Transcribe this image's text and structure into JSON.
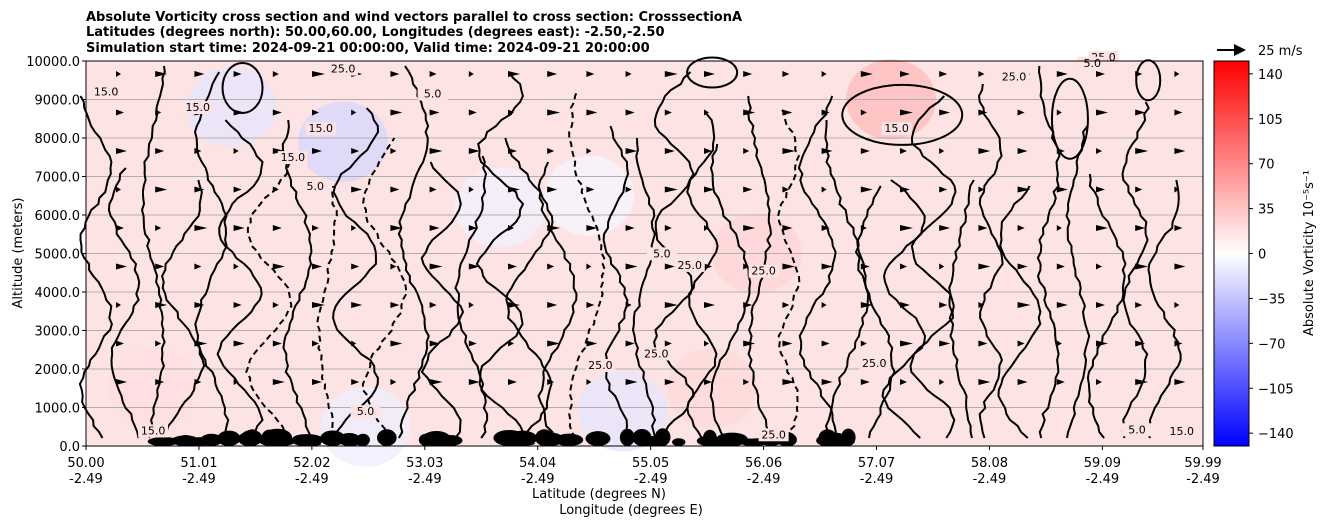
{
  "chart_data": {
    "type": "contour",
    "title_lines": [
      "Absolute Vorticity cross section and wind vectors parallel to cross section: CrosssectionA",
      "Latitudes (degrees north): 50.00,60.00, Longitudes (degrees east): -2.50,-2.50",
      "Simulation start time: 2024-09-21 00:00:00, Valid time: 2024-09-21 20:00:00"
    ],
    "ylabel": "Altitude (meters)",
    "xlabel_lines": [
      "Latitude (degrees N)",
      "Longitude (degrees E)"
    ],
    "x_ticks": [
      {
        "lat": "50.00",
        "lon": "-2.49",
        "value": 50.0
      },
      {
        "lat": "51.01",
        "lon": "-2.49",
        "value": 51.01
      },
      {
        "lat": "52.02",
        "lon": "-2.49",
        "value": 52.02
      },
      {
        "lat": "53.03",
        "lon": "-2.49",
        "value": 53.03
      },
      {
        "lat": "54.04",
        "lon": "-2.49",
        "value": 54.04
      },
      {
        "lat": "55.05",
        "lon": "-2.49",
        "value": 55.05
      },
      {
        "lat": "56.06",
        "lon": "-2.49",
        "value": 56.06
      },
      {
        "lat": "57.07",
        "lon": "-2.49",
        "value": 57.07
      },
      {
        "lat": "58.08",
        "lon": "-2.49",
        "value": 58.08
      },
      {
        "lat": "59.09",
        "lon": "-2.49",
        "value": 59.09
      },
      {
        "lat": "59.99",
        "lon": "-2.49",
        "value": 59.99
      }
    ],
    "xlim": [
      50.0,
      59.99
    ],
    "y_ticks": [
      "0.0",
      "1000.0",
      "2000.0",
      "3000.0",
      "4000.0",
      "5000.0",
      "6000.0",
      "7000.0",
      "8000.0",
      "9000.0",
      "10000.0"
    ],
    "ylim": [
      0,
      10000
    ],
    "grid": "horizontal",
    "colorbar": {
      "label": "Absolute Vorticity 10⁻⁵s⁻¹",
      "ticks": [
        "140",
        "105",
        "70",
        "35",
        "0",
        "−35",
        "−70",
        "−105",
        "−140"
      ],
      "range": [
        -150,
        150
      ],
      "cmap": "bwr",
      "color_low": "#0000ff",
      "color_mid": "#ffffff",
      "color_high": "#ff0000"
    },
    "quiver_key": "25 m/s",
    "contour_levels": [
      -5.0,
      5.0,
      15.0,
      25.0,
      35.0
    ],
    "contour_labels": [
      {
        "text": "15.0",
        "lat": 50.18,
        "alt": 9100
      },
      {
        "text": "15.0",
        "lat": 51.0,
        "alt": 8700
      },
      {
        "text": "15.0",
        "lat": 51.85,
        "alt": 7400
      },
      {
        "text": "5.0",
        "lat": 52.05,
        "alt": 6650
      },
      {
        "text": "25.0",
        "lat": 52.3,
        "alt": 9700
      },
      {
        "text": "5.0",
        "lat": 53.1,
        "alt": 9050
      },
      {
        "text": "15.0",
        "lat": 52.1,
        "alt": 8150
      },
      {
        "text": "15.0",
        "lat": 57.25,
        "alt": 8150
      },
      {
        "text": "25.0",
        "lat": 55.4,
        "alt": 4600
      },
      {
        "text": "25.0",
        "lat": 55.1,
        "alt": 2300
      },
      {
        "text": "25.0",
        "lat": 56.06,
        "alt": 4450
      },
      {
        "text": "5.0",
        "lat": 55.15,
        "alt": 4900
      },
      {
        "text": "25.0",
        "lat": 58.3,
        "alt": 9500
      },
      {
        "text": "25.0",
        "lat": 59.1,
        "alt": 10000
      },
      {
        "text": "25.0",
        "lat": 57.05,
        "alt": 2050
      },
      {
        "text": "5.0",
        "lat": 59.0,
        "alt": 9850
      },
      {
        "text": "25.0",
        "lat": 56.15,
        "alt": 200
      },
      {
        "text": "5.0",
        "lat": 52.5,
        "alt": 800
      },
      {
        "text": "15.0",
        "lat": 50.6,
        "alt": 300
      },
      {
        "text": "25.0",
        "lat": 54.6,
        "alt": 2000
      },
      {
        "text": "5.0",
        "lat": 59.4,
        "alt": 330
      },
      {
        "text": "15.0",
        "lat": 59.8,
        "alt": 280
      }
    ],
    "background_anomalies": [
      {
        "lat": 57.2,
        "alt": 9000,
        "vort": 40
      },
      {
        "lat": 51.3,
        "alt": 8800,
        "vort": -15
      },
      {
        "lat": 52.3,
        "alt": 7900,
        "vort": -25
      },
      {
        "lat": 53.7,
        "alt": 6200,
        "vort": -8
      },
      {
        "lat": 54.5,
        "alt": 6500,
        "vort": -6
      },
      {
        "lat": 56.0,
        "alt": 5000,
        "vort": 25
      },
      {
        "lat": 54.8,
        "alt": 900,
        "vort": -15
      },
      {
        "lat": 52.5,
        "alt": 500,
        "vort": -10
      },
      {
        "lat": 50.6,
        "alt": 1500,
        "vort": 20
      },
      {
        "lat": 55.6,
        "alt": 1500,
        "vort": 22
      }
    ]
  }
}
